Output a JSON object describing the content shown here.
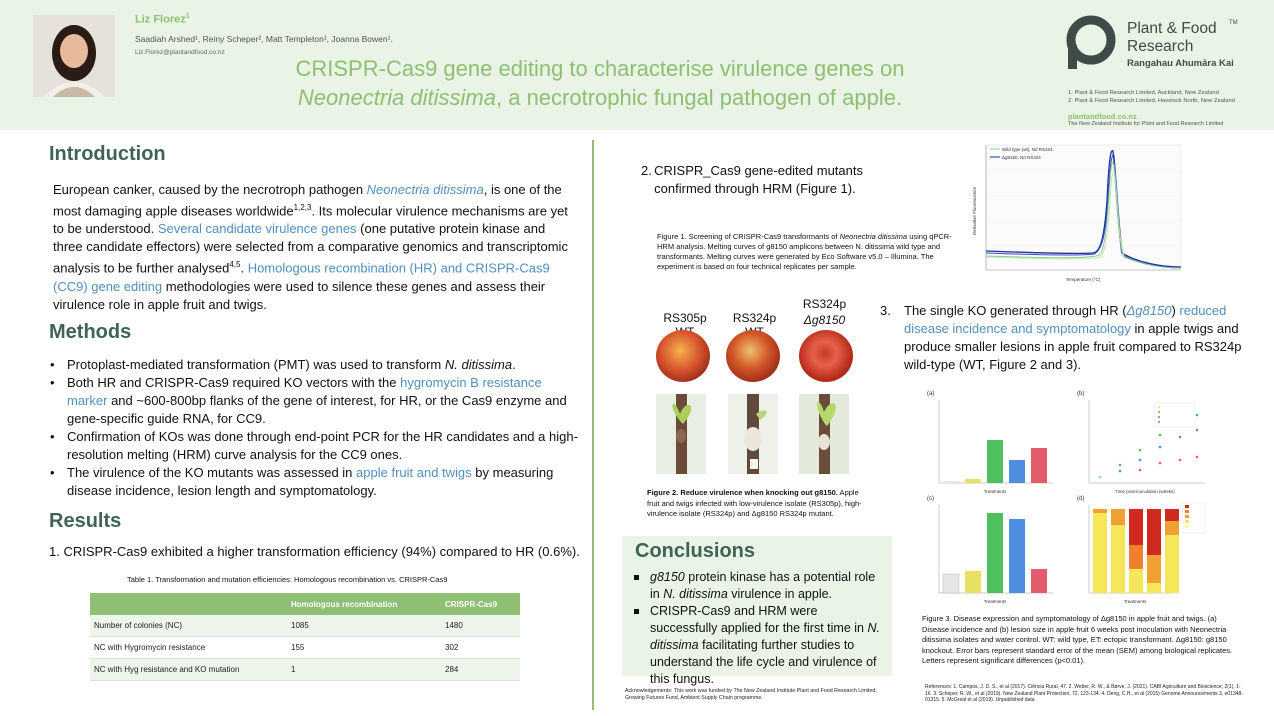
{
  "header": {
    "author": "Liz Florez",
    "author_sup": "1",
    "coauthors": "Saadiah Arshed¹, Reiny Scheper², Matt Templeton¹, Joanna Bowen¹.",
    "email": "Liz.Florez@plantandfood.co.nz",
    "title_line1": "CRISPR-Cas9 gene editing to characterise virulence genes on",
    "title_line2_italic": "Neonectria ditissima",
    "title_line2_rest": ", a necrotrophic fungal pathogen of apple.",
    "logo_line1": "Plant & Food",
    "logo_tm": "TM",
    "logo_line2": "Research",
    "logo_line3": "Rangahau Ahumāra Kai",
    "affiliation1": "1.  Plant & Food Research Limited, Auckland, New Zealand",
    "affiliation2": "2.  Plant & Food Research Limited, Havelock North, New Zealand",
    "website": "plantandfood.co.nz",
    "institute": "The New Zealand Institute for Plant and Food Research Limited",
    "colors": {
      "accent_green": "#8fbf72",
      "band": "#e9f3e6",
      "heading": "#3f6357",
      "link": "#4f8fc0"
    }
  },
  "introduction": {
    "heading": "Introduction",
    "p1": "European canker, caused by the necrotroph pathogen ",
    "p1_species": "Neonectria ditissima",
    "p2": ", is one of the most damaging apple diseases worldwide",
    "p2_sup": "1,2,3",
    "p3": ". Its molecular virulence mechanisms are yet to be understood. ",
    "p3_link": "Several candidate virulence genes",
    "p4": " (one putative protein kinase and three candidate effectors) were selected from a comparative genomics and transcriptomic analysis to be further analysed",
    "p4_sup": "4,5",
    "p5": ". ",
    "p5_link": "Homologous recombination (HR) and CRISPR-Cas9 (CC9) gene editing",
    "p6": " methodologies were used to silence these genes and assess their virulence role in apple fruit and twigs."
  },
  "methods": {
    "heading": "Methods",
    "m1a": "Protoplast-mediated transformation (PMT) was used to transform ",
    "m1_species": "N. ditissima",
    "m1b": ".",
    "m2a": "Both HR and CRISPR-Cas9 required KO vectors with the ",
    "m2_link": "hygromycin B resistance marker",
    "m2b": " and ~600-800bp flanks of the gene of interest, for HR, or the Cas9 enzyme and gene-specific guide RNA, for CC9.",
    "m3": "Confirmation of KOs was done through end-point PCR for the HR candidates and a high-resolution melting (HRM) curve analysis for the CC9 ones.",
    "m4a": " The virulence of the KO mutants was assessed in ",
    "m4_link": "apple fruit and twigs",
    "m4b": " by measuring disease incidence, lesion length and symptomatology."
  },
  "results": {
    "heading": "Results",
    "r1": "1.     CRISPR-Cas9 exhibited a higher transformation efficiency (94%) compared to HR (0.6%).",
    "table_caption": "Table 1. Transformation and mutation efficiencies: Homologous recombination vs. CRISPR-Cas9",
    "table": {
      "headers": [
        "",
        "Homologous recombination",
        "CRISPR-Cas9"
      ],
      "rows": [
        [
          "Number of colonies (NC)",
          "1085",
          "1480"
        ],
        [
          "NC with Hygromycin resistance",
          "155",
          "302"
        ],
        [
          "NC with Hyg resistance and KO mutation",
          "1",
          "284"
        ]
      ]
    },
    "r2_num": "2.",
    "r2_text": "CRISPR_Cas9 gene-edited mutants confirmed through HRM (Figure 1).",
    "fig1_caption_a": "Figure 1. Screening of CRISPR-Cas9 transformants of ",
    "fig1_species": "Neonectria ditissima",
    "fig1_caption_b": " using qPCR-HRM analysis. Melting curves of g8150 amplicons between N. ditissima wild type and transformants. Melting curves were generated by Eco Software v5.0 – Illumina. The experiment is based on four technical replicates per sample.",
    "hrm_legend_1": "Wild type (wt), Nd RS324",
    "hrm_legend_2": "Δg8150, Nd RS324",
    "hrm_ylabel": "Derivative Fluorescence",
    "hrm_xlabel": "Temperature (°C)",
    "label_rs305": "RS305p WT",
    "label_rs324wt": "RS324p WT",
    "label_rs324p": "RS324p",
    "label_dg": "Δg8150",
    "fig2_bold": "Figure 2. Reduce virulence when knocking out g8150.",
    "fig2_rest": " Apple fruit and twigs infected with low-virulence isolate (RS305p), high-virulence isolate (RS324p) and Δg8150 RS324p mutant.",
    "r3_num": "3.",
    "r3_a": "The single KO generated through HR (",
    "r3_link1": "Δg8150",
    "r3_b": ") ",
    "r3_link2": "reduced disease incidence and symptomatology",
    "r3_c": " in apple twigs and produce smaller lesions in apple fruit compared to RS324p wild-type (WT, Figure 2 and 3).",
    "fig3_caption": "Figure 3. Disease expression and symptomatology of Δg8150 in apple fruit and twigs. (a) Disease incidence and (b) lesion size in apple fruit 6 weeks post inoculation with Neonectria ditissima isolates and water control. WT: wild type, ET: ectopic transformant. Δg8150: g8150 knockout. Error bars represent standard error of the mean (SEM) among biological replicates. Letters represent significant differences (p<0.01).",
    "fig3_panels": {
      "a": "(a)",
      "b": "(b)",
      "c": "(c)",
      "d": "(d)",
      "x_treat": "Treatments",
      "x_time": "Time post-inoculation (weeks)"
    }
  },
  "conclusions": {
    "heading": "Conclusions",
    "c1_species": "g8150",
    "c1a": " protein kinase has a potential role in ",
    "c1_species2": "N. ditissima",
    "c1b": " virulence in apple.",
    "c2a": "CRISPR-Cas9 and HRM were successfully applied for the first time in ",
    "c2_species": "N. ditissima",
    "c2b": " facilitating further studies to understand the life cycle and virulence of this fungus."
  },
  "acknowledgements": "Acknowledgements: This work was funded by The New Zealand Institute Plant and Food Research Limited, Growing Futures Fund, Ambient Supply Chain programme.",
  "references": "References: 1. Campos, J. D. S., et al (2017). Ciência Rural, 47. 2. Weber, R. W., & Børve, J. (2021). CABI Agriculture and Bioscience, 2(1), 1-16. 3. Scheper, R. W., et al (2019). New Zealand Plant Protection, 72, 123-134. 4. Deng, C.H., et al (2015) Genome Announcements 3, e01348-01315. 5. McGreal et al (2019). Unpublished data"
}
